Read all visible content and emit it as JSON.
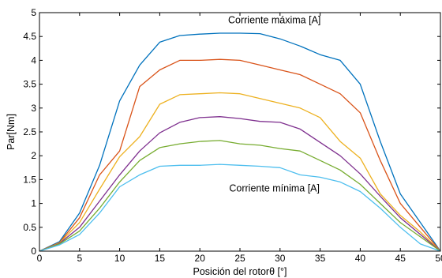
{
  "chart_data": {
    "type": "line",
    "title": "",
    "xlabel": "Posición del rotorθ [°]",
    "ylabel": "Par[Nm]",
    "xlim": [
      0,
      50
    ],
    "ylim": [
      0,
      5
    ],
    "xticks": [
      0,
      5,
      10,
      15,
      20,
      25,
      30,
      35,
      40,
      45,
      50
    ],
    "yticks": [
      0,
      0.5,
      1,
      1.5,
      2,
      2.5,
      3,
      3.5,
      4,
      4.5,
      5
    ],
    "grid": false,
    "legend": "none",
    "annotations": [
      {
        "text": "Corriente máxima [A]",
        "x": 29.3,
        "y": 4.78
      },
      {
        "text": "Corriente mínima [A]",
        "x": 29.3,
        "y": 1.25
      }
    ],
    "x": [
      0,
      2.5,
      5,
      7.5,
      10,
      12.5,
      15,
      17.5,
      20,
      22.5,
      25,
      27.5,
      30,
      32.5,
      35,
      37.5,
      40,
      42.5,
      45,
      47.5,
      50
    ],
    "series": [
      {
        "color": "#0072BD",
        "values": [
          0,
          0.2,
          0.8,
          1.8,
          3.15,
          3.9,
          4.38,
          4.52,
          4.55,
          4.57,
          4.57,
          4.56,
          4.45,
          4.3,
          4.12,
          4.0,
          3.5,
          2.3,
          1.2,
          0.6,
          0
        ]
      },
      {
        "color": "#D95319",
        "values": [
          0,
          0.18,
          0.7,
          1.6,
          2.1,
          3.45,
          3.8,
          4.0,
          4.0,
          4.02,
          4.0,
          3.9,
          3.8,
          3.7,
          3.5,
          3.3,
          2.9,
          1.9,
          1.0,
          0.5,
          0
        ]
      },
      {
        "color": "#EDB120",
        "values": [
          0,
          0.17,
          0.6,
          1.3,
          1.98,
          2.4,
          3.08,
          3.28,
          3.3,
          3.32,
          3.3,
          3.2,
          3.1,
          3.0,
          2.8,
          2.3,
          1.95,
          1.2,
          0.75,
          0.4,
          0
        ]
      },
      {
        "color": "#7E2F8E",
        "values": [
          0,
          0.16,
          0.5,
          1.05,
          1.6,
          2.1,
          2.48,
          2.7,
          2.8,
          2.82,
          2.78,
          2.72,
          2.7,
          2.56,
          2.28,
          2.0,
          1.62,
          1.15,
          0.7,
          0.35,
          0
        ]
      },
      {
        "color": "#77AC30",
        "values": [
          0,
          0.15,
          0.42,
          0.9,
          1.45,
          1.9,
          2.17,
          2.25,
          2.3,
          2.32,
          2.25,
          2.22,
          2.15,
          2.1,
          1.9,
          1.7,
          1.4,
          1.0,
          0.6,
          0.3,
          0
        ]
      },
      {
        "color": "#4DBEEE",
        "values": [
          0,
          0.13,
          0.35,
          0.8,
          1.35,
          1.6,
          1.78,
          1.8,
          1.8,
          1.82,
          1.8,
          1.78,
          1.75,
          1.6,
          1.55,
          1.45,
          1.25,
          0.9,
          0.5,
          0.15,
          0
        ]
      }
    ]
  }
}
